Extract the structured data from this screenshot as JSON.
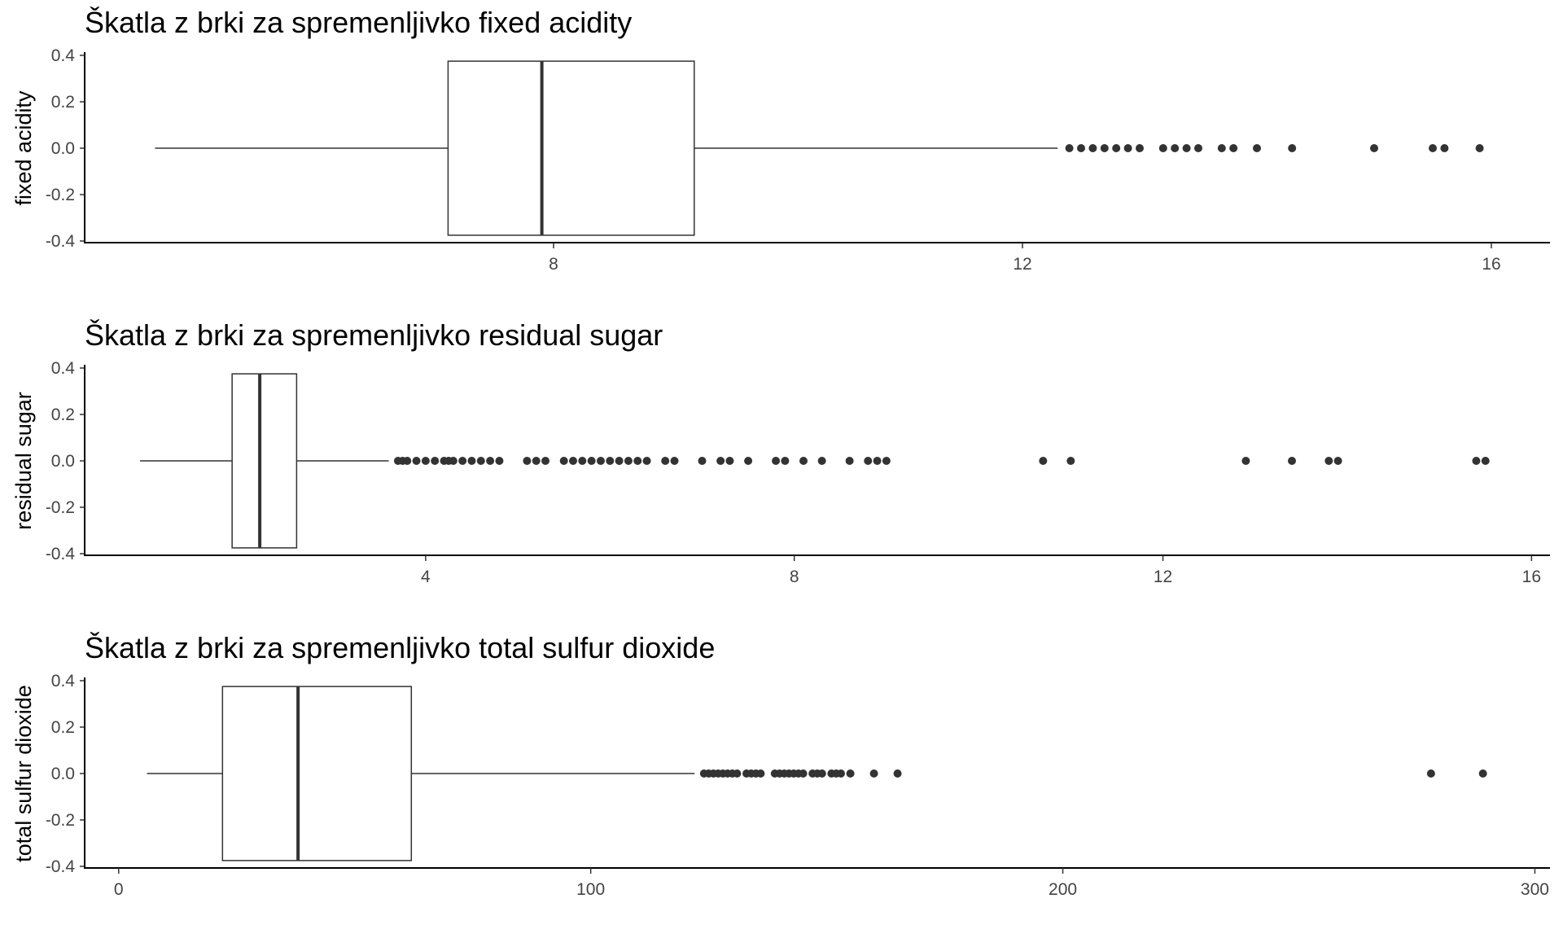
{
  "chart_data": [
    {
      "type": "boxplot",
      "title": "Škatla z brki za spremenljivko fixed acidity",
      "ylabel": "fixed acidity",
      "xlabel": "",
      "xlim": [
        4.0,
        16.5
      ],
      "ylim": [
        -0.4,
        0.4
      ],
      "x_ticks": [
        8,
        12,
        16
      ],
      "x_tick_labels": [
        "8",
        "12",
        "16"
      ],
      "y_ticks": [
        0.4,
        0.2,
        0.0,
        -0.2,
        -0.4
      ],
      "y_tick_labels": [
        "0.4",
        "0.2",
        "0.0",
        "-0.2",
        "-0.4"
      ],
      "box": {
        "whisker_low": 4.6,
        "q1": 7.1,
        "median": 7.9,
        "q3": 9.2,
        "whisker_high": 12.3
      },
      "outliers": [
        12.4,
        12.5,
        12.6,
        12.7,
        12.8,
        12.9,
        13.0,
        13.2,
        13.3,
        13.4,
        13.5,
        13.7,
        13.8,
        14.0,
        14.3,
        15.0,
        15.5,
        15.6,
        15.9
      ]
    },
    {
      "type": "boxplot",
      "title": "Škatla z brki za spremenljivko residual sugar",
      "ylabel": "residual sugar",
      "xlabel": "",
      "xlim": [
        0.3,
        16.2
      ],
      "ylim": [
        -0.4,
        0.4
      ],
      "x_ticks": [
        4,
        8,
        12,
        16
      ],
      "x_tick_labels": [
        "4",
        "8",
        "12",
        "16"
      ],
      "y_ticks": [
        0.4,
        0.2,
        0.0,
        -0.2,
        -0.4
      ],
      "y_tick_labels": [
        "0.4",
        "0.2",
        "0.0",
        "-0.2",
        "-0.4"
      ],
      "box": {
        "whisker_low": 0.9,
        "q1": 1.9,
        "median": 2.2,
        "q3": 2.6,
        "whisker_high": 3.6
      },
      "outliers": [
        3.7,
        3.75,
        3.8,
        3.9,
        4.0,
        4.1,
        4.2,
        4.25,
        4.3,
        4.4,
        4.5,
        4.6,
        4.7,
        4.8,
        5.1,
        5.2,
        5.3,
        5.5,
        5.6,
        5.7,
        5.8,
        5.9,
        6.0,
        6.1,
        6.2,
        6.3,
        6.4,
        6.6,
        6.7,
        7.0,
        7.2,
        7.3,
        7.5,
        7.8,
        7.9,
        8.1,
        8.3,
        8.6,
        8.8,
        8.9,
        9.0,
        10.7,
        11.0,
        12.9,
        13.4,
        13.8,
        13.9,
        15.4,
        15.5
      ]
    },
    {
      "type": "boxplot",
      "title": "Škatla z brki za spremenljivko total sulfur dioxide",
      "ylabel": "total sulfur dioxide",
      "xlabel": "",
      "xlim": [
        -7.2,
        303.2
      ],
      "ylim": [
        -0.4,
        0.4
      ],
      "x_ticks": [
        0,
        100,
        200,
        300
      ],
      "x_tick_labels": [
        "0",
        "100",
        "200",
        "300"
      ],
      "y_ticks": [
        0.4,
        0.2,
        0.0,
        -0.2,
        -0.4
      ],
      "y_tick_labels": [
        "0.4",
        "0.2",
        "0.0",
        "-0.2",
        "-0.4"
      ],
      "box": {
        "whisker_low": 6,
        "q1": 22,
        "median": 38,
        "q3": 62,
        "whisker_high": 122
      },
      "outliers": [
        124,
        125,
        126,
        127,
        128,
        129,
        130,
        131,
        133,
        134,
        135,
        136,
        139,
        140,
        141,
        142,
        143,
        144,
        145,
        147,
        148,
        149,
        151,
        152,
        153,
        155,
        160,
        165,
        278,
        289
      ]
    }
  ]
}
